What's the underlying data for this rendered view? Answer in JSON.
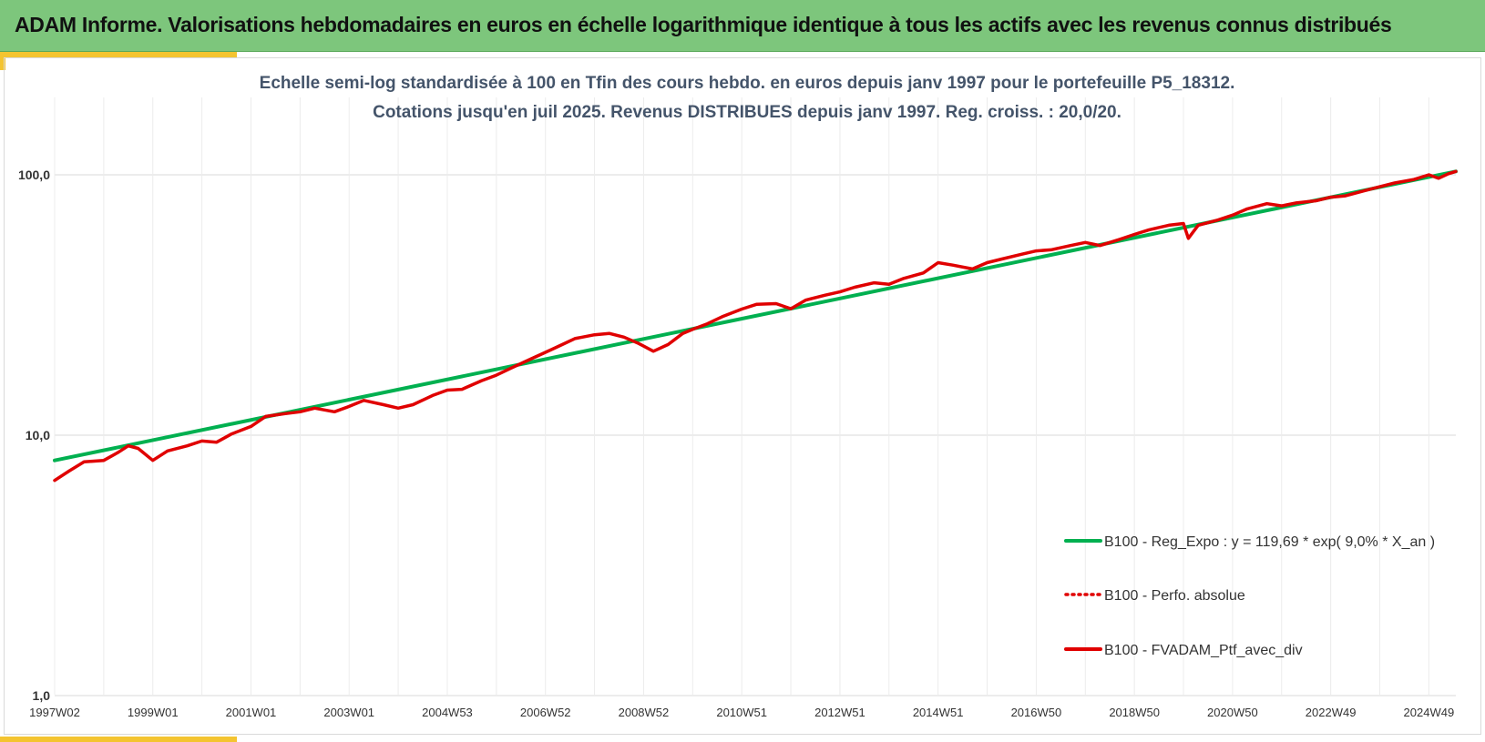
{
  "header": {
    "title": "ADAM Informe. Valorisations hebdomadaires en euros en échelle logarithmique identique à tous les actifs avec les revenus connus distribués",
    "background": "#7dc67c",
    "accent": "#f4c430"
  },
  "chart_data": {
    "type": "line",
    "title_line1": "Echelle semi-log standardisée  à 100 en Tfin des cours hebdo.  en euros depuis janv 1997 pour le portefeuille P5_18312.",
    "title_line2": "Cotations  jusqu'en juil 2025. Revenus DISTRIBUES depuis janv 1997. Reg. croiss. : 20,0/20.",
    "y_scale": "log",
    "ylim": [
      1,
      200
    ],
    "y_ticks": [
      {
        "value": 1,
        "label": "1,0"
      },
      {
        "value": 10,
        "label": "10,0"
      },
      {
        "value": 100,
        "label": "100,0"
      }
    ],
    "xlim": [
      1997.0,
      2025.55
    ],
    "x_ticks": [
      {
        "value": 1997.0,
        "label": "1997W02"
      },
      {
        "value": 1999.0,
        "label": "1999W01"
      },
      {
        "value": 2001.0,
        "label": "2001W01"
      },
      {
        "value": 2003.0,
        "label": "2003W01"
      },
      {
        "value": 2005.0,
        "label": "2004W53"
      },
      {
        "value": 2007.0,
        "label": "2006W52"
      },
      {
        "value": 2009.0,
        "label": "2008W52"
      },
      {
        "value": 2011.0,
        "label": "2010W51"
      },
      {
        "value": 2013.0,
        "label": "2012W51"
      },
      {
        "value": 2015.0,
        "label": "2014W51"
      },
      {
        "value": 2017.0,
        "label": "2016W50"
      },
      {
        "value": 2019.0,
        "label": "2018W50"
      },
      {
        "value": 2021.0,
        "label": "2020W50"
      },
      {
        "value": 2023.0,
        "label": "2022W49"
      },
      {
        "value": 2025.0,
        "label": "2024W49"
      }
    ],
    "grid": {
      "horizontal": true,
      "vertical": true
    },
    "legend_position": "bottom-right",
    "series": [
      {
        "name": "B100 - Reg_Expo : y = 119,69 * exp( 9,0% *  X_an )",
        "color": "#00b050",
        "style": "solid",
        "x": [
          1997.0,
          2025.55
        ],
        "y": [
          8.0,
          103.0
        ]
      },
      {
        "name": "B100 - Perfo. absolue",
        "color": "#e00000",
        "style": "dotted",
        "x": [],
        "y": []
      },
      {
        "name": "B100 - FVADAM_Ptf_avec_div",
        "color": "#e00000",
        "style": "solid",
        "x": [
          1997.0,
          1997.3,
          1997.6,
          1998.0,
          1998.3,
          1998.5,
          1998.7,
          1999.0,
          1999.3,
          1999.7,
          2000.0,
          2000.3,
          2000.6,
          2001.0,
          2001.3,
          2001.7,
          2002.0,
          2002.3,
          2002.7,
          2003.0,
          2003.3,
          2003.7,
          2004.0,
          2004.3,
          2004.7,
          2005.0,
          2005.3,
          2005.7,
          2006.0,
          2006.3,
          2006.7,
          2007.0,
          2007.3,
          2007.6,
          2008.0,
          2008.3,
          2008.6,
          2008.9,
          2009.2,
          2009.5,
          2009.8,
          2010.0,
          2010.3,
          2010.6,
          2011.0,
          2011.3,
          2011.7,
          2012.0,
          2012.3,
          2012.7,
          2013.0,
          2013.3,
          2013.7,
          2014.0,
          2014.3,
          2014.7,
          2015.0,
          2015.3,
          2015.7,
          2016.0,
          2016.3,
          2016.7,
          2017.0,
          2017.3,
          2017.7,
          2018.0,
          2018.3,
          2018.7,
          2019.0,
          2019.3,
          2019.7,
          2020.0,
          2020.1,
          2020.3,
          2020.7,
          2021.0,
          2021.3,
          2021.7,
          2022.0,
          2022.3,
          2022.7,
          2023.0,
          2023.3,
          2023.7,
          2024.0,
          2024.3,
          2024.7,
          2025.0,
          2025.2,
          2025.4,
          2025.55
        ],
        "y": [
          6.7,
          7.3,
          7.9,
          8.0,
          8.6,
          9.1,
          8.9,
          8.0,
          8.7,
          9.1,
          9.5,
          9.4,
          10.1,
          10.8,
          11.8,
          12.1,
          12.3,
          12.7,
          12.3,
          12.9,
          13.6,
          13.1,
          12.7,
          13.1,
          14.2,
          14.9,
          15.0,
          16.2,
          17.0,
          18.1,
          19.6,
          20.8,
          22.1,
          23.5,
          24.3,
          24.6,
          23.8,
          22.5,
          21.0,
          22.3,
          24.6,
          25.5,
          26.8,
          28.5,
          30.5,
          31.8,
          32.0,
          30.6,
          33.0,
          34.5,
          35.5,
          37.0,
          38.5,
          38.0,
          40.0,
          42.0,
          46.0,
          45.0,
          43.5,
          46.0,
          47.5,
          49.5,
          51.0,
          51.5,
          53.5,
          55.0,
          53.5,
          56.5,
          59.0,
          61.5,
          64.0,
          65.0,
          57.0,
          64.0,
          67.0,
          70.0,
          74.0,
          77.5,
          76.0,
          78.0,
          79.5,
          82.0,
          83.0,
          87.0,
          90.0,
          93.0,
          96.0,
          100.0,
          97.0,
          101.0,
          103.0
        ]
      }
    ]
  }
}
